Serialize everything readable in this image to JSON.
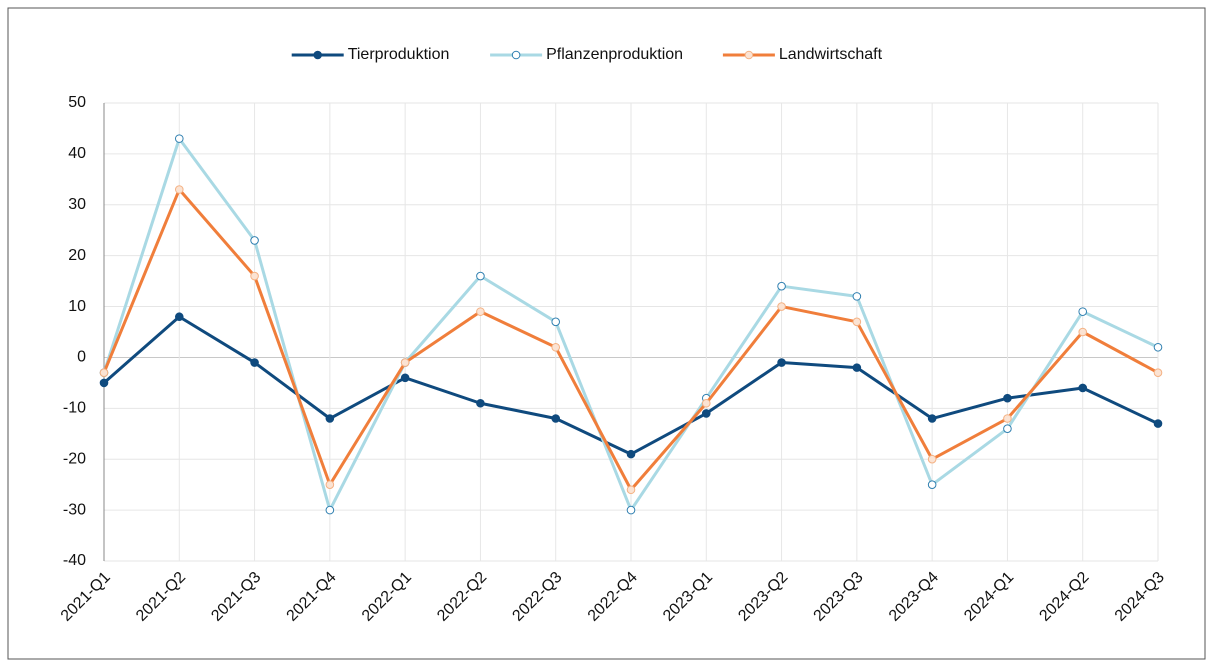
{
  "chart_data": {
    "type": "line",
    "categories": [
      "2021-Q1",
      "2021-Q2",
      "2021-Q3",
      "2021-Q4",
      "2022-Q1",
      "2022-Q2",
      "2022-Q3",
      "2022-Q4",
      "2023-Q1",
      "2023-Q2",
      "2023-Q3",
      "2023-Q4",
      "2024-Q1",
      "2024-Q2",
      "2024-Q3"
    ],
    "series": [
      {
        "name": "Tierproduktion",
        "color": "#0f4a7e",
        "values": [
          -5,
          8,
          -1,
          -12,
          -4,
          -9,
          -12,
          -19,
          -11,
          -1,
          -2,
          -12,
          -8,
          -6,
          -13
        ]
      },
      {
        "name": "Pflanzenproduktion",
        "color": "#a9d9e4",
        "values": [
          -3,
          43,
          23,
          -30,
          -1,
          16,
          7,
          -30,
          -8,
          14,
          12,
          -25,
          -14,
          9,
          2
        ]
      },
      {
        "name": "Landwirtschaft",
        "color": "#f07e3b",
        "values": [
          -3,
          33,
          16,
          -25,
          -1,
          9,
          2,
          -26,
          -9,
          10,
          7,
          -20,
          -12,
          5,
          -3
        ]
      }
    ],
    "ylim": [
      -40,
      50
    ],
    "yticks": [
      -40,
      -30,
      -20,
      -10,
      0,
      10,
      20,
      30,
      40,
      50
    ],
    "grid": true,
    "legend": "top"
  }
}
